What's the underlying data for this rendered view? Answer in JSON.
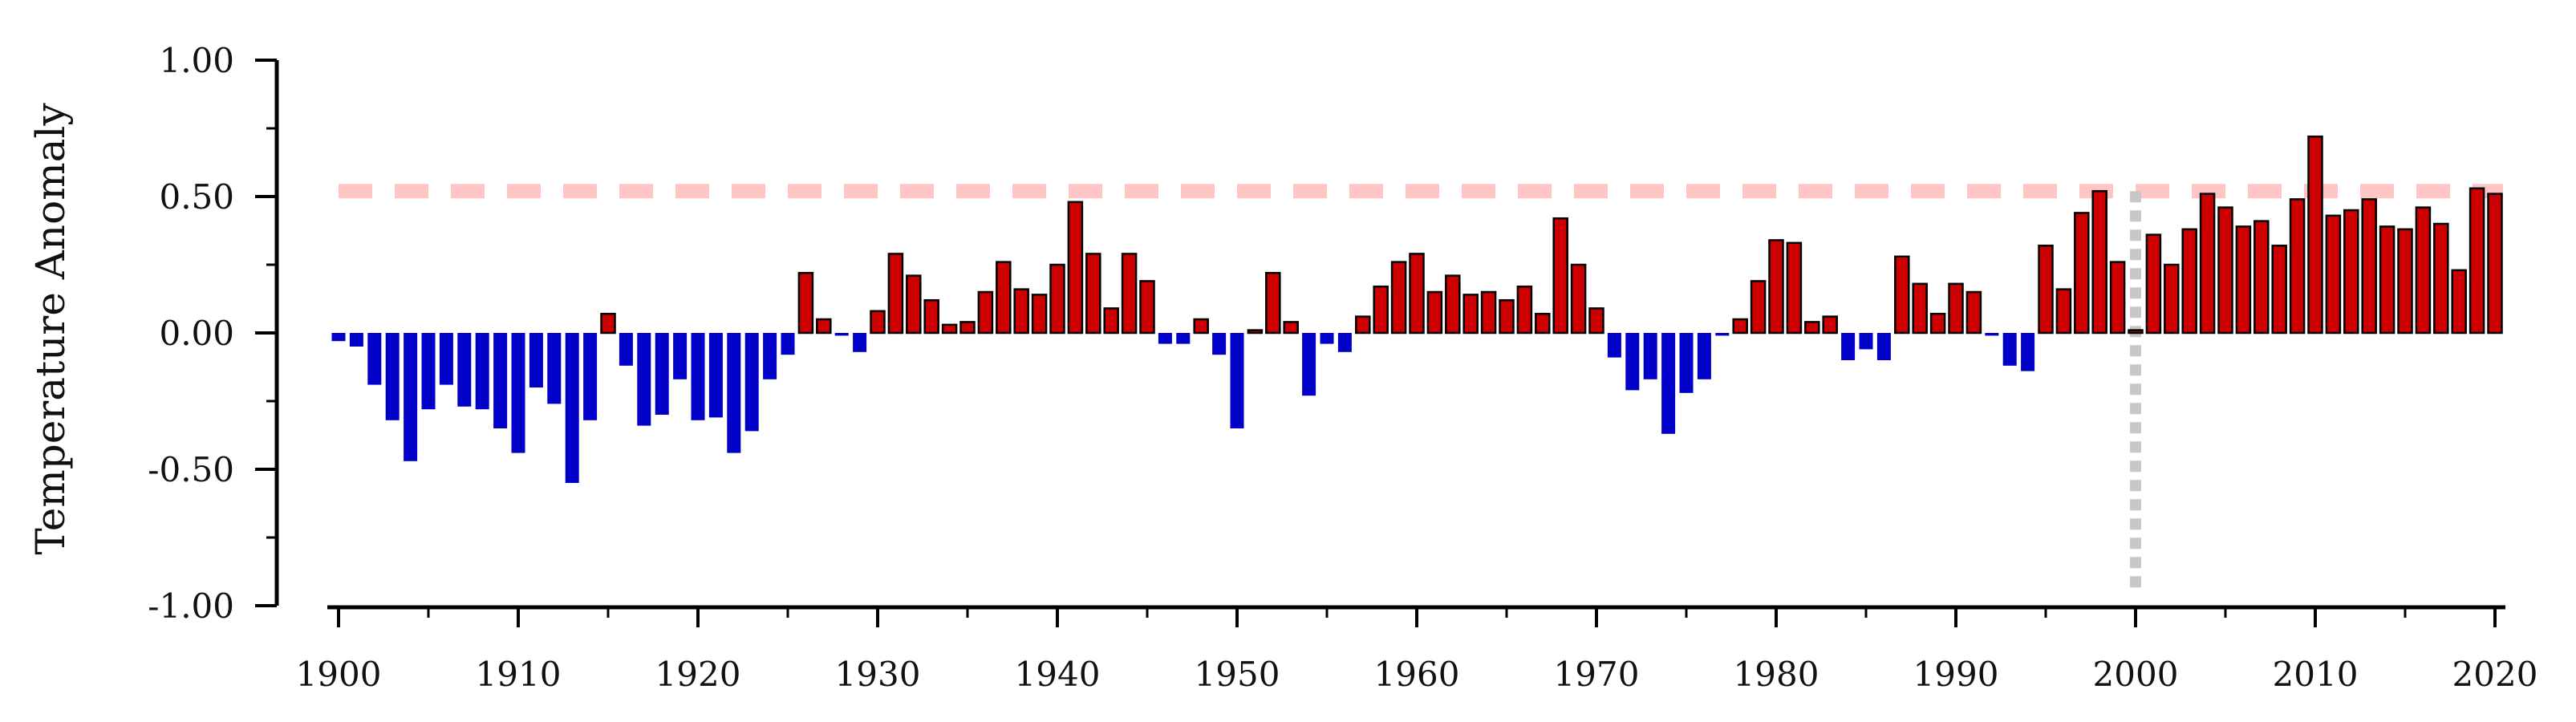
{
  "chart_data": {
    "type": "bar",
    "title": "",
    "xlabel": "",
    "ylabel": "Temperature Anomaly",
    "ylim": [
      -1.0,
      1.0
    ],
    "xlim": [
      1900,
      2020
    ],
    "grid": false,
    "y_ticks": [
      {
        "value": -1.0,
        "label": "-1.00"
      },
      {
        "value": -0.5,
        "label": "-0.50"
      },
      {
        "value": 0.0,
        "label": "0.00"
      },
      {
        "value": 0.5,
        "label": "0.50"
      },
      {
        "value": 1.0,
        "label": "1.00"
      }
    ],
    "x_ticks": [
      {
        "value": 1900,
        "label": "1900"
      },
      {
        "value": 1910,
        "label": "1910"
      },
      {
        "value": 1920,
        "label": "1920"
      },
      {
        "value": 1930,
        "label": "1930"
      },
      {
        "value": 1940,
        "label": "1940"
      },
      {
        "value": 1950,
        "label": "1950"
      },
      {
        "value": 1960,
        "label": "1960"
      },
      {
        "value": 1970,
        "label": "1970"
      },
      {
        "value": 1980,
        "label": "1980"
      },
      {
        "value": 1990,
        "label": "1990"
      },
      {
        "value": 2000,
        "label": "2000"
      },
      {
        "value": 2010,
        "label": "2010"
      },
      {
        "value": 2020,
        "label": "2020"
      }
    ],
    "colors": {
      "positive": "#cc0000",
      "negative": "#0000c8",
      "reference_line": "#ffc4c4",
      "vertical_marker": "#c8c8c8"
    },
    "reference_line_y": 0.52,
    "vertical_marker_x": 2000,
    "x": [
      1900,
      1901,
      1902,
      1903,
      1904,
      1905,
      1906,
      1907,
      1908,
      1909,
      1910,
      1911,
      1912,
      1913,
      1914,
      1915,
      1916,
      1917,
      1918,
      1919,
      1920,
      1921,
      1922,
      1923,
      1924,
      1925,
      1926,
      1927,
      1928,
      1929,
      1930,
      1931,
      1932,
      1933,
      1934,
      1935,
      1936,
      1937,
      1938,
      1939,
      1940,
      1941,
      1942,
      1943,
      1944,
      1945,
      1946,
      1947,
      1948,
      1949,
      1950,
      1951,
      1952,
      1953,
      1954,
      1955,
      1956,
      1957,
      1958,
      1959,
      1960,
      1961,
      1962,
      1963,
      1964,
      1965,
      1966,
      1967,
      1968,
      1969,
      1970,
      1971,
      1972,
      1973,
      1974,
      1975,
      1976,
      1977,
      1978,
      1979,
      1980,
      1981,
      1982,
      1983,
      1984,
      1985,
      1986,
      1987,
      1988,
      1989,
      1990,
      1991,
      1992,
      1993,
      1994,
      1995,
      1996,
      1997,
      1998,
      1999,
      2000,
      2001,
      2002,
      2003,
      2004,
      2005,
      2006,
      2007,
      2008,
      2009,
      2010,
      2011,
      2012,
      2013,
      2014,
      2015,
      2016,
      2017,
      2018,
      2019,
      2020
    ],
    "values": [
      -0.03,
      -0.05,
      -0.19,
      -0.32,
      -0.47,
      -0.28,
      -0.19,
      -0.27,
      -0.28,
      -0.35,
      -0.44,
      -0.2,
      -0.26,
      -0.55,
      -0.32,
      0.07,
      -0.12,
      -0.34,
      -0.3,
      -0.17,
      -0.32,
      -0.31,
      -0.44,
      -0.36,
      -0.17,
      -0.08,
      0.22,
      0.05,
      -0.01,
      -0.07,
      0.08,
      0.29,
      0.21,
      0.12,
      0.03,
      0.04,
      0.15,
      0.26,
      0.16,
      0.14,
      0.25,
      0.48,
      0.29,
      0.09,
      0.29,
      0.19,
      -0.04,
      -0.04,
      0.05,
      -0.08,
      -0.35,
      0.01,
      0.22,
      0.04,
      -0.23,
      -0.04,
      -0.07,
      0.06,
      0.17,
      0.26,
      0.29,
      0.15,
      0.21,
      0.14,
      0.15,
      0.12,
      0.17,
      0.07,
      0.42,
      0.25,
      0.09,
      -0.09,
      -0.21,
      -0.17,
      -0.37,
      -0.22,
      -0.17,
      -0.01,
      0.05,
      0.19,
      0.34,
      0.33,
      0.04,
      0.06,
      -0.1,
      -0.06,
      -0.1,
      0.28,
      0.18,
      0.07,
      0.18,
      0.15,
      -0.01,
      -0.12,
      -0.14,
      0.32,
      0.16,
      0.44,
      0.52,
      0.26,
      0.01,
      0.36,
      0.25,
      0.38,
      0.51,
      0.46,
      0.39,
      0.41,
      0.32,
      0.49,
      0.72,
      0.43,
      0.45,
      0.49,
      0.39,
      0.38,
      0.46,
      0.4,
      0.23,
      0.53,
      0.51
    ]
  }
}
